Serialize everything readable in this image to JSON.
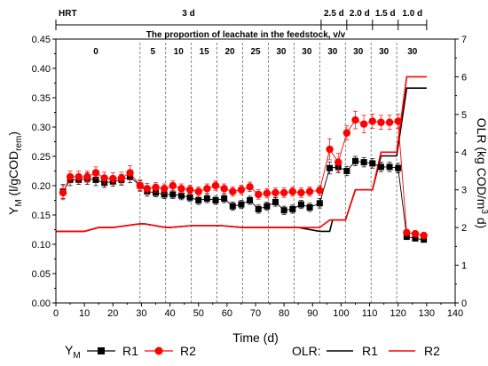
{
  "chart_data": {
    "type": "line",
    "xlabel": "Time (d)",
    "ylabel_left_main": "Y",
    "ylabel_left_sub": "M",
    "ylabel_left_unit": "(l/gCOD",
    "ylabel_left_unit_sub": "rem",
    "ylabel_left_close": ")",
    "ylabel_right": "OLR (kg COD/m",
    "ylabel_right_sup": "3",
    "ylabel_right_end": " d)",
    "xlim": [
      0,
      140
    ],
    "xticks": [
      0,
      10,
      20,
      30,
      40,
      50,
      60,
      70,
      80,
      90,
      100,
      110,
      120,
      130,
      140
    ],
    "ylim_left": [
      0.0,
      0.45
    ],
    "yticks_left": [
      "0.00",
      "0.05",
      "0.10",
      "0.15",
      "0.20",
      "0.25",
      "0.30",
      "0.35",
      "0.40",
      "0.45"
    ],
    "ylim_right": [
      0,
      7
    ],
    "yticks_right": [
      "0",
      "1",
      "2",
      "3",
      "4",
      "5",
      "6",
      "7"
    ],
    "hrt_label": "HRT",
    "hrt_segments": [
      {
        "label": "3 d",
        "from": 0,
        "to": 93
      },
      {
        "label": "2.5 d",
        "from": 93,
        "to": 102
      },
      {
        "label": "2.0 d",
        "from": 102,
        "to": 111
      },
      {
        "label": "1.5 d",
        "from": 111,
        "to": 120
      },
      {
        "label": "1.0 d",
        "from": 120,
        "to": 130
      }
    ],
    "leachate_title": "The proportion of leachate in the feedstock, v/v",
    "leachate_boundaries": [
      29.5,
      38.5,
      47.5,
      56.5,
      65.5,
      74.5,
      83.5,
      92.5,
      101.5,
      110.5,
      119.5
    ],
    "leachate_segments": [
      {
        "label": "0",
        "x": 14
      },
      {
        "label": "5",
        "x": 34
      },
      {
        "label": "10",
        "x": 43
      },
      {
        "label": "15",
        "x": 52
      },
      {
        "label": "20",
        "x": 61
      },
      {
        "label": "25",
        "x": 70
      },
      {
        "label": "30",
        "x": 79
      },
      {
        "label": "30",
        "x": 88
      },
      {
        "label": "30",
        "x": 97
      },
      {
        "label": "30",
        "x": 106
      },
      {
        "label": "30",
        "x": 115
      },
      {
        "label": "30",
        "x": 125
      }
    ],
    "ym_series": [
      {
        "name": "R1",
        "color": "#000000",
        "marker": "square",
        "x": [
          2.5,
          5,
          8,
          11,
          14,
          17,
          20,
          23,
          26,
          29.5,
          32,
          35,
          38,
          41,
          44,
          47,
          50,
          53,
          56,
          59,
          62,
          65,
          68,
          71,
          74,
          77,
          80,
          83,
          86,
          89,
          92.5,
          96,
          99,
          102,
          105,
          108,
          111,
          114,
          117,
          120,
          123,
          126,
          129
        ],
        "y": [
          0.19,
          0.21,
          0.21,
          0.212,
          0.21,
          0.205,
          0.207,
          0.21,
          0.215,
          0.2,
          0.19,
          0.188,
          0.185,
          0.185,
          0.183,
          0.18,
          0.175,
          0.178,
          0.175,
          0.178,
          0.165,
          0.168,
          0.175,
          0.16,
          0.165,
          0.172,
          0.158,
          0.16,
          0.168,
          0.163,
          0.17,
          0.23,
          0.232,
          0.225,
          0.242,
          0.24,
          0.238,
          0.232,
          0.232,
          0.23,
          0.113,
          0.11,
          0.108
        ],
        "err": [
          0.012,
          0.01,
          0.008,
          0.01,
          0.01,
          0.008,
          0.008,
          0.009,
          0.01,
          0.008,
          0.008,
          0.007,
          0.007,
          0.007,
          0.007,
          0.007,
          0.007,
          0.007,
          0.007,
          0.007,
          0.007,
          0.007,
          0.007,
          0.007,
          0.007,
          0.007,
          0.007,
          0.007,
          0.007,
          0.007,
          0.008,
          0.01,
          0.01,
          0.008,
          0.008,
          0.008,
          0.008,
          0.008,
          0.008,
          0.008,
          0.005,
          0.004,
          0.004
        ]
      },
      {
        "name": "R2",
        "color": "#ff0000",
        "marker": "circle",
        "x": [
          2.5,
          5,
          8,
          11,
          14,
          17,
          20,
          23,
          26,
          29.5,
          32,
          35,
          38,
          41,
          44,
          47,
          50,
          53,
          56,
          59,
          62,
          65,
          68,
          71,
          74,
          77,
          80,
          83,
          86,
          89,
          92.5,
          96,
          99,
          102,
          105,
          108,
          111,
          114,
          117,
          120,
          123,
          126,
          129
        ],
        "y": [
          0.188,
          0.215,
          0.215,
          0.215,
          0.222,
          0.213,
          0.212,
          0.213,
          0.222,
          0.2,
          0.195,
          0.197,
          0.195,
          0.2,
          0.195,
          0.193,
          0.19,
          0.195,
          0.2,
          0.195,
          0.19,
          0.193,
          0.198,
          0.185,
          0.187,
          0.188,
          0.188,
          0.19,
          0.188,
          0.19,
          0.192,
          0.262,
          0.24,
          0.29,
          0.312,
          0.305,
          0.31,
          0.308,
          0.308,
          0.31,
          0.12,
          0.118,
          0.115
        ],
        "err": [
          0.012,
          0.01,
          0.01,
          0.01,
          0.01,
          0.01,
          0.01,
          0.01,
          0.012,
          0.01,
          0.009,
          0.008,
          0.008,
          0.008,
          0.008,
          0.008,
          0.008,
          0.008,
          0.008,
          0.008,
          0.008,
          0.008,
          0.008,
          0.008,
          0.008,
          0.008,
          0.008,
          0.008,
          0.008,
          0.008,
          0.008,
          0.018,
          0.015,
          0.012,
          0.015,
          0.015,
          0.012,
          0.012,
          0.012,
          0.012,
          0.005,
          0.004,
          0.004
        ]
      }
    ],
    "olr_series": [
      {
        "name": "R1",
        "color": "#000000",
        "x": [
          0,
          10,
          15,
          20,
          29.5,
          31,
          38.5,
          40,
          47.5,
          49,
          56.5,
          58,
          65.5,
          67,
          74.5,
          76,
          83.5,
          85,
          92.5,
          96,
          97,
          100,
          101.5,
          105,
          111,
          114,
          119.5,
          123,
          130
        ],
        "y": [
          1.9,
          1.9,
          2.0,
          2.0,
          2.1,
          2.1,
          2.0,
          2.0,
          2.05,
          2.05,
          2.05,
          2.05,
          2.0,
          2.0,
          2.0,
          2.0,
          2.0,
          2.0,
          1.9,
          1.9,
          2.2,
          2.2,
          2.2,
          3.0,
          3.0,
          3.9,
          3.9,
          5.7,
          5.7
        ]
      },
      {
        "name": "R2",
        "color": "#ff0000",
        "x": [
          0,
          10,
          15,
          20,
          29.5,
          31,
          38.5,
          40,
          47.5,
          49,
          56.5,
          58,
          65.5,
          67,
          74.5,
          76,
          83.5,
          85,
          92.5,
          96,
          97,
          100,
          101.5,
          105,
          111,
          114,
          119.5,
          123,
          130
        ],
        "y": [
          1.9,
          1.9,
          2.0,
          2.0,
          2.1,
          2.1,
          2.0,
          2.0,
          2.05,
          2.05,
          2.05,
          2.05,
          2.0,
          2.0,
          2.0,
          2.0,
          2.0,
          2.0,
          2.0,
          2.2,
          2.2,
          2.2,
          2.2,
          3.0,
          3.0,
          4.0,
          4.0,
          6.0,
          6.0
        ]
      }
    ],
    "legend": {
      "ym_label_main": "Y",
      "ym_label_sub": "M",
      "olr_label": "OLR:",
      "r1": "R1",
      "r2": "R2"
    }
  }
}
